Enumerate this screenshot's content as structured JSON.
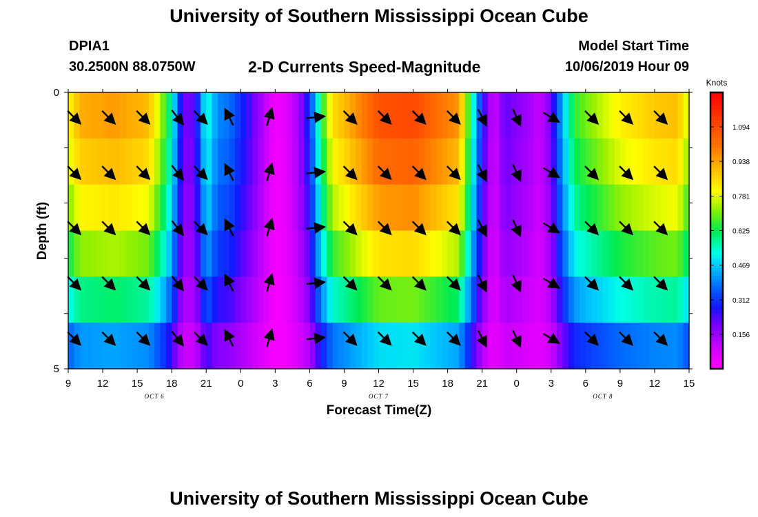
{
  "header": {
    "title": "University of Southern Mississippi Ocean Cube",
    "station_id": "DPIA1",
    "station_coords": "30.2500N 88.0750W",
    "plot_title": "2-D Currents Speed-Magnitude",
    "model_start_label": "Model Start Time",
    "model_start_value": "10/06/2019 Hour 09"
  },
  "footer": {
    "title": "University of Southern Mississippi Ocean Cube"
  },
  "chart_data": {
    "type": "heatmap",
    "title": "2-D Currents Speed-Magnitude",
    "xlabel": "Forecast Time(Z)",
    "ylabel": "Depth (ft)",
    "x_ticks": [
      "9",
      "12",
      "15",
      "18",
      "21",
      "0",
      "3",
      "6",
      "9",
      "12",
      "15",
      "18",
      "21",
      "0",
      "3",
      "6",
      "9",
      "12",
      "15"
    ],
    "x_range_hours": [
      0,
      54
    ],
    "y_tick_labels": [
      "0",
      "5"
    ],
    "y_range_ft": [
      0,
      5
    ],
    "day_labels": [
      {
        "label": "OCT 6",
        "hour": 7.5
      },
      {
        "label": "OCT 7",
        "hour": 27
      },
      {
        "label": "OCT 8",
        "hour": 46.5
      }
    ],
    "colorbar": {
      "unit": "Knots",
      "ticks": [
        "1.094",
        "0.938",
        "0.781",
        "0.625",
        "0.469",
        "0.312",
        "0.156"
      ],
      "tick_values": [
        1.094,
        0.938,
        0.781,
        0.625,
        0.469,
        0.312,
        0.156
      ],
      "range": [
        0,
        1.25
      ]
    },
    "depth_layers": 5,
    "speed_profile": [
      [
        0,
        0.8
      ],
      [
        1,
        0.92
      ],
      [
        4,
        0.95
      ],
      [
        7,
        0.9
      ],
      [
        8,
        0.75
      ],
      [
        9,
        0.55
      ],
      [
        10,
        0.2
      ],
      [
        11,
        0.22
      ],
      [
        12,
        0.55
      ],
      [
        13,
        0.4
      ],
      [
        14,
        0.38
      ],
      [
        15,
        0.3
      ],
      [
        16,
        0.22
      ],
      [
        17,
        0.12
      ],
      [
        18,
        0.02
      ],
      [
        19,
        0.05
      ],
      [
        20,
        0.15
      ],
      [
        21,
        0.3
      ],
      [
        22,
        0.62
      ],
      [
        23,
        0.85
      ],
      [
        24,
        0.9
      ],
      [
        27,
        1.08
      ],
      [
        30,
        1.1
      ],
      [
        34,
        0.95
      ],
      [
        35,
        0.6
      ],
      [
        36,
        0.28
      ],
      [
        37,
        0.08
      ],
      [
        38,
        0.22
      ],
      [
        39,
        0.18
      ],
      [
        40,
        0.15
      ],
      [
        41,
        0.1
      ],
      [
        42,
        0.2
      ],
      [
        43,
        0.45
      ],
      [
        44,
        0.65
      ],
      [
        45,
        0.7
      ],
      [
        48,
        0.82
      ],
      [
        51,
        0.88
      ],
      [
        53,
        0.9
      ],
      [
        54,
        0.75
      ]
    ],
    "layer_factors": [
      1.0,
      0.95,
      0.88,
      0.78,
      0.64,
      0.45
    ],
    "vectors": [
      {
        "hour": 0.5,
        "u": 1,
        "v": -1
      },
      {
        "hour": 3.5,
        "u": 1,
        "v": -1
      },
      {
        "hour": 6.5,
        "u": 1,
        "v": -1
      },
      {
        "hour": 9.5,
        "u": 0.8,
        "v": -1
      },
      {
        "hour": 11.5,
        "u": 1,
        "v": -1
      },
      {
        "hour": 14,
        "u": -0.5,
        "v": 1
      },
      {
        "hour": 17.5,
        "u": 0.3,
        "v": 1
      },
      {
        "hour": 21.5,
        "u": 1,
        "v": 0.1
      },
      {
        "hour": 24.5,
        "u": 1,
        "v": -1
      },
      {
        "hour": 27.5,
        "u": 1,
        "v": -1
      },
      {
        "hour": 30.5,
        "u": 1,
        "v": -1
      },
      {
        "hour": 33.5,
        "u": 1,
        "v": -1
      },
      {
        "hour": 36,
        "u": 0.5,
        "v": -1
      },
      {
        "hour": 39,
        "u": 0.5,
        "v": -1.1
      },
      {
        "hour": 42,
        "u": 1,
        "v": -0.6
      },
      {
        "hour": 45.5,
        "u": 1,
        "v": -1
      },
      {
        "hour": 48.5,
        "u": 1,
        "v": -1
      },
      {
        "hour": 51.5,
        "u": 1,
        "v": -1
      }
    ]
  }
}
